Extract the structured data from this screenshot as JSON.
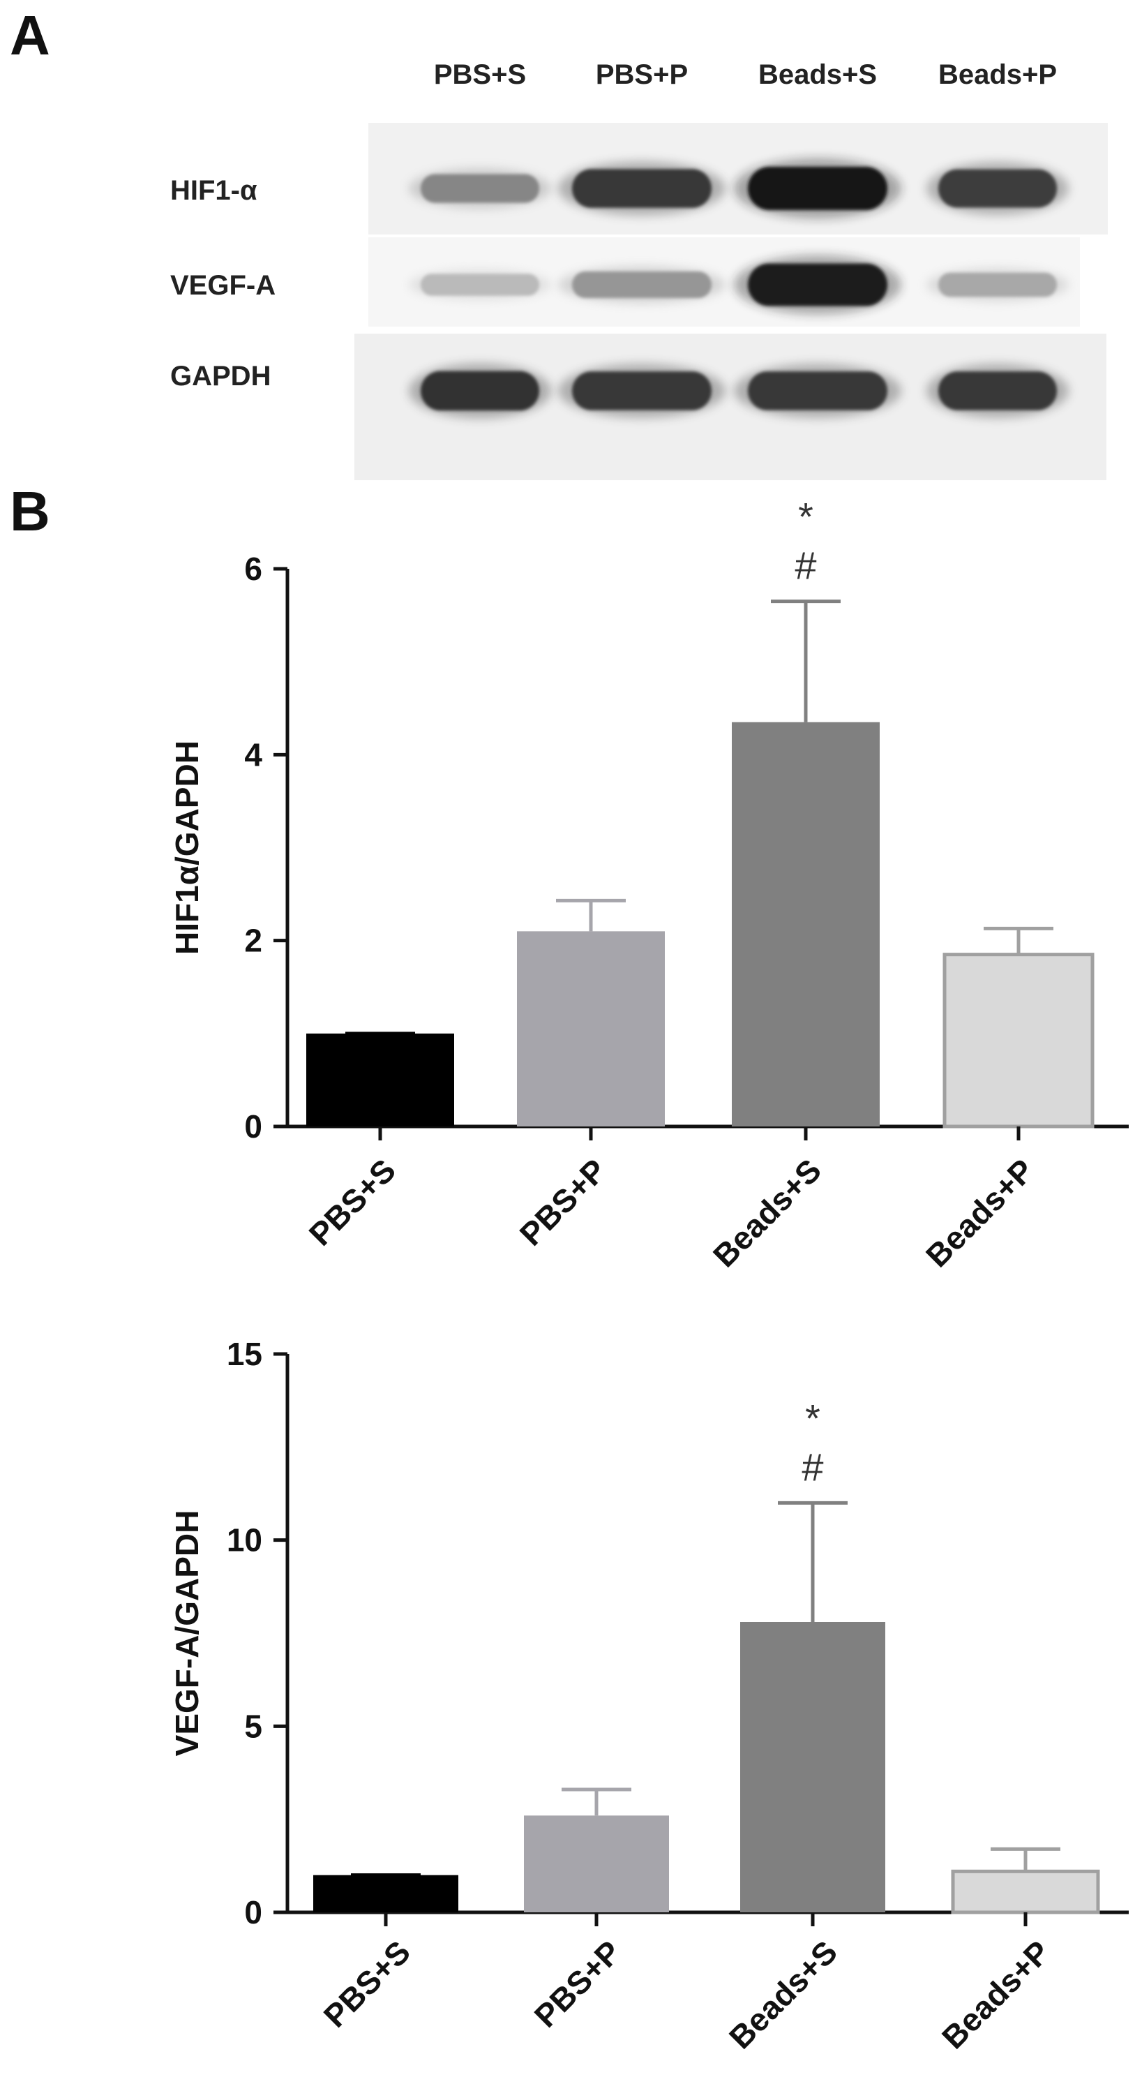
{
  "panels": {
    "a": "A",
    "b": "B"
  },
  "blot": {
    "lanes": [
      "PBS+S",
      "PBS+P",
      "Beads+S",
      "Beads+P"
    ],
    "proteins": [
      "HIF1-α",
      "VEGF-A",
      "GAPDH"
    ],
    "band_intensity": [
      [
        0.45,
        0.8,
        0.95,
        0.78
      ],
      [
        0.22,
        0.38,
        0.93,
        0.3
      ],
      [
        0.82,
        0.8,
        0.8,
        0.8
      ]
    ]
  },
  "chart_data": [
    {
      "type": "bar",
      "categories": [
        "PBS+S",
        "PBS+P",
        "Beads+S",
        "Beads+P"
      ],
      "values": [
        1.0,
        2.1,
        4.35,
        1.85
      ],
      "errors": [
        0.0,
        0.33,
        1.3,
        0.28
      ],
      "colors": [
        "#000000",
        "#a6a5ab",
        "#808080",
        "#d9d9d9"
      ],
      "ylim": [
        0,
        6
      ],
      "yticks": [
        "0",
        "2",
        "4",
        "6"
      ],
      "ylabel": "HIF1α/GAPDH",
      "xlabel": "",
      "significance": {
        "category": "Beads+S",
        "marks": [
          "*",
          "#"
        ]
      }
    },
    {
      "type": "bar",
      "categories": [
        "PBS+S",
        "PBS+P",
        "Beads+S",
        "Beads+P"
      ],
      "values": [
        1.0,
        2.6,
        7.8,
        1.1
      ],
      "errors": [
        0.0,
        0.7,
        3.2,
        0.6
      ],
      "colors": [
        "#000000",
        "#a6a5ab",
        "#808080",
        "#d9d9d9"
      ],
      "ylim": [
        0,
        15
      ],
      "yticks": [
        "0",
        "5",
        "10",
        "15"
      ],
      "ylabel": "VEGF-A/GAPDH",
      "xlabel": "",
      "significance": {
        "category": "Beads+S",
        "marks": [
          "*",
          "#"
        ]
      }
    }
  ]
}
